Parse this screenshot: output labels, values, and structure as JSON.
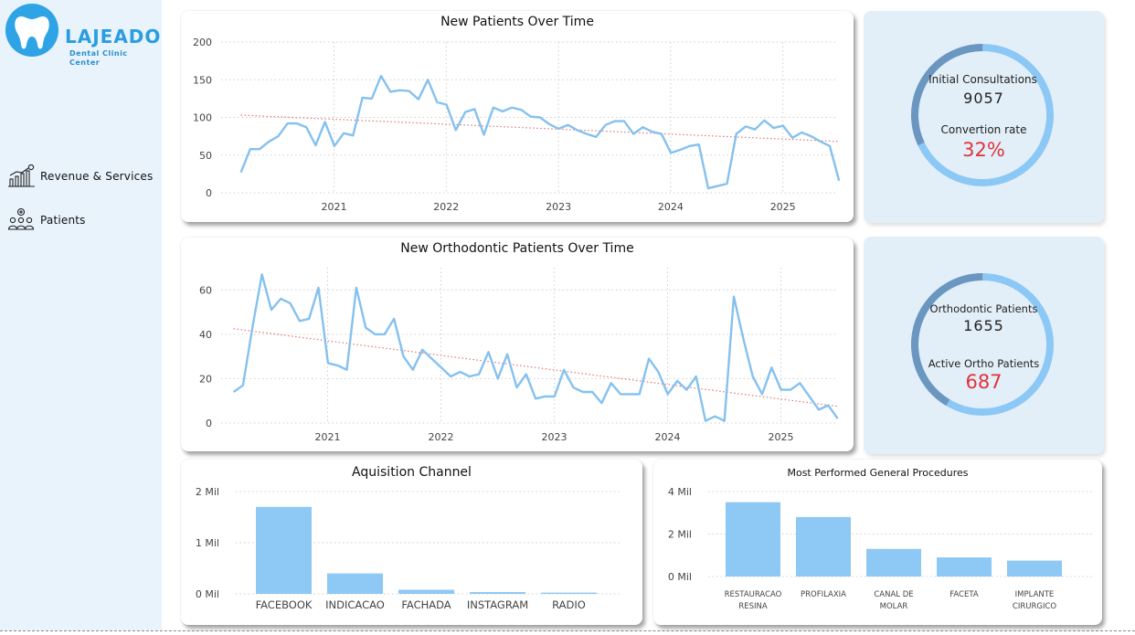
{
  "brand": {
    "name": "LAJEADO",
    "subtitle": "Dental Clinic Center"
  },
  "nav": {
    "items": [
      {
        "label": "Revenue & Services",
        "icon": "revenue-chart-icon"
      },
      {
        "label": "Patients",
        "icon": "patients-group-icon"
      }
    ]
  },
  "colors": {
    "line": "#85c1ef",
    "trend": "#e57373",
    "bar": "#8ec8f4",
    "kpi_bg": "#e2eff8",
    "ring_light": "#8cc8f5",
    "ring_dark": "#6a96c0",
    "accent_red": "#e0333a",
    "sidebar_bg": "#e8f3fb"
  },
  "kpis": {
    "initial_consultations_label": "Initial Consultations",
    "initial_consultations_value": "9057",
    "conversion_rate_label": "Convertion rate",
    "conversion_rate_value": "32%",
    "conversion_rate_fraction": 0.32,
    "ortho_patients_label": "Orthodontic Patients",
    "ortho_patients_value": "1655",
    "active_ortho_label": "Active Ortho Patients",
    "active_ortho_value": "687",
    "active_ortho_fraction": 0.415
  },
  "chart_data": [
    {
      "type": "line",
      "title": "New Patients Over Time",
      "ylim": [
        0,
        200
      ],
      "yticks": [
        0,
        50,
        100,
        150,
        200
      ],
      "xticks": [
        "2021",
        "2022",
        "2023",
        "2024",
        "2025"
      ],
      "x_start": 2020.17,
      "x_step": 0.0833,
      "trend": [
        103,
        68
      ],
      "grid": true,
      "values": [
        27,
        58,
        58,
        68,
        75,
        92,
        92,
        87,
        63,
        94,
        62,
        79,
        76,
        126,
        125,
        155,
        134,
        136,
        135,
        124,
        150,
        120,
        117,
        83,
        107,
        111,
        77,
        113,
        108,
        113,
        110,
        101,
        100,
        91,
        85,
        90,
        83,
        78,
        74,
        90,
        95,
        95,
        78,
        87,
        81,
        78,
        53,
        57,
        62,
        64,
        6,
        9,
        12,
        78,
        88,
        84,
        96,
        86,
        89,
        73,
        80,
        75,
        68,
        62,
        16
      ]
    },
    {
      "type": "line",
      "title": "New Orthodontic Patients Over Time",
      "ylim": [
        0,
        70
      ],
      "yticks": [
        0,
        20,
        40,
        60
      ],
      "xticks": [
        "2021",
        "2022",
        "2023",
        "2024",
        "2025"
      ],
      "x_start": 2020.17,
      "x_step": 0.0833,
      "trend": [
        42.5,
        7.5
      ],
      "grid": true,
      "values": [
        14,
        17,
        43,
        67,
        51,
        56,
        54,
        46,
        47,
        61,
        27,
        26,
        24,
        61,
        43,
        40,
        40,
        47,
        30,
        24,
        33,
        29,
        25,
        21,
        23,
        21,
        22,
        32,
        20,
        31,
        16,
        22,
        11,
        12,
        12,
        24,
        16,
        14,
        14,
        9,
        18,
        13,
        13,
        13,
        29,
        23,
        13,
        19,
        15,
        21,
        1,
        3,
        1,
        57,
        38,
        21,
        13,
        25,
        15,
        15,
        18,
        12,
        6,
        8,
        2
      ]
    },
    {
      "type": "bar",
      "title": "Aquisition Channel",
      "categories": [
        "FACEBOOK",
        "INDICACAO",
        "FACHADA",
        "INSTAGRAM",
        "RADIO"
      ],
      "values": [
        1700000,
        400000,
        80000,
        35000,
        25000
      ],
      "ylim": [
        0,
        2000000
      ],
      "yticks": [
        "0 Mil",
        "1 Mil",
        "2 Mil"
      ],
      "grid": true
    },
    {
      "type": "bar",
      "title": "Most Performed General Procedures",
      "categories": [
        [
          "RESTAURACAO",
          "RESINA"
        ],
        [
          "PROFILAXIA"
        ],
        [
          "CANAL DE",
          "MOLAR"
        ],
        [
          "FACETA"
        ],
        [
          "IMPLANTE",
          "CIRURGICO"
        ]
      ],
      "values": [
        3500000,
        2800000,
        1300000,
        900000,
        750000
      ],
      "ylim": [
        0,
        4000000
      ],
      "yticks": [
        "0 Mil",
        "2 Mil",
        "4 Mil"
      ],
      "grid": true
    }
  ]
}
